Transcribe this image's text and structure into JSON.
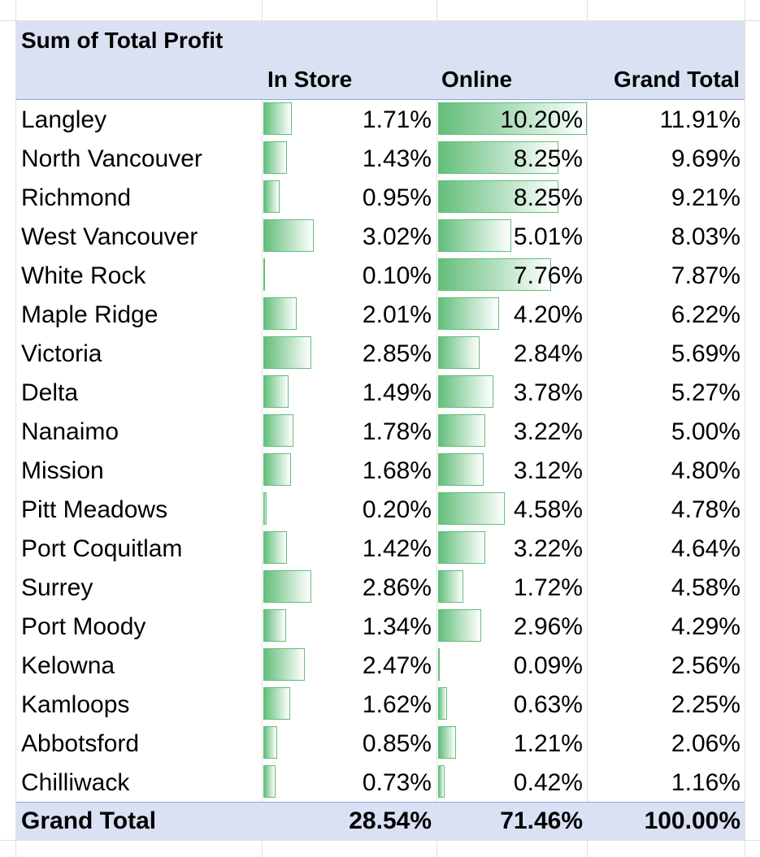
{
  "pivot": {
    "title": "Sum of Total Profit",
    "columns": {
      "in_store": "In Store",
      "online": "Online",
      "grand_total": "Grand Total"
    },
    "rows": [
      {
        "city": "Langley",
        "in_store": "1.71%",
        "online": "10.20%",
        "total": "11.91%",
        "in_store_pct": 1.71,
        "online_pct": 10.2
      },
      {
        "city": "North Vancouver",
        "in_store": "1.43%",
        "online": "8.25%",
        "total": "9.69%",
        "in_store_pct": 1.43,
        "online_pct": 8.25
      },
      {
        "city": "Richmond",
        "in_store": "0.95%",
        "online": "8.25%",
        "total": "9.21%",
        "in_store_pct": 0.95,
        "online_pct": 8.25
      },
      {
        "city": "West Vancouver",
        "in_store": "3.02%",
        "online": "5.01%",
        "total": "8.03%",
        "in_store_pct": 3.02,
        "online_pct": 5.01
      },
      {
        "city": "White Rock",
        "in_store": "0.10%",
        "online": "7.76%",
        "total": "7.87%",
        "in_store_pct": 0.1,
        "online_pct": 7.76
      },
      {
        "city": "Maple Ridge",
        "in_store": "2.01%",
        "online": "4.20%",
        "total": "6.22%",
        "in_store_pct": 2.01,
        "online_pct": 4.2
      },
      {
        "city": "Victoria",
        "in_store": "2.85%",
        "online": "2.84%",
        "total": "5.69%",
        "in_store_pct": 2.85,
        "online_pct": 2.84
      },
      {
        "city": "Delta",
        "in_store": "1.49%",
        "online": "3.78%",
        "total": "5.27%",
        "in_store_pct": 1.49,
        "online_pct": 3.78
      },
      {
        "city": "Nanaimo",
        "in_store": "1.78%",
        "online": "3.22%",
        "total": "5.00%",
        "in_store_pct": 1.78,
        "online_pct": 3.22
      },
      {
        "city": "Mission",
        "in_store": "1.68%",
        "online": "3.12%",
        "total": "4.80%",
        "in_store_pct": 1.68,
        "online_pct": 3.12
      },
      {
        "city": "Pitt Meadows",
        "in_store": "0.20%",
        "online": "4.58%",
        "total": "4.78%",
        "in_store_pct": 0.2,
        "online_pct": 4.58
      },
      {
        "city": "Port Coquitlam",
        "in_store": "1.42%",
        "online": "3.22%",
        "total": "4.64%",
        "in_store_pct": 1.42,
        "online_pct": 3.22
      },
      {
        "city": "Surrey",
        "in_store": "2.86%",
        "online": "1.72%",
        "total": "4.58%",
        "in_store_pct": 2.86,
        "online_pct": 1.72
      },
      {
        "city": "Port Moody",
        "in_store": "1.34%",
        "online": "2.96%",
        "total": "4.29%",
        "in_store_pct": 1.34,
        "online_pct": 2.96
      },
      {
        "city": "Kelowna",
        "in_store": "2.47%",
        "online": "0.09%",
        "total": "2.56%",
        "in_store_pct": 2.47,
        "online_pct": 0.09
      },
      {
        "city": "Kamloops",
        "in_store": "1.62%",
        "online": "0.63%",
        "total": "2.25%",
        "in_store_pct": 1.62,
        "online_pct": 0.63
      },
      {
        "city": "Abbotsford",
        "in_store": "0.85%",
        "online": "1.21%",
        "total": "2.06%",
        "in_store_pct": 0.85,
        "online_pct": 1.21
      },
      {
        "city": "Chilliwack",
        "in_store": "0.73%",
        "online": "0.42%",
        "total": "1.16%",
        "in_store_pct": 0.73,
        "online_pct": 0.42
      }
    ],
    "grand_total": {
      "label": "Grand Total",
      "in_store": "28.54%",
      "online": "71.46%",
      "total": "100.00%"
    }
  },
  "colors": {
    "header_fill": "#d9e1f2",
    "data_bar": "#63be7b",
    "border": "#8ea9db"
  }
}
